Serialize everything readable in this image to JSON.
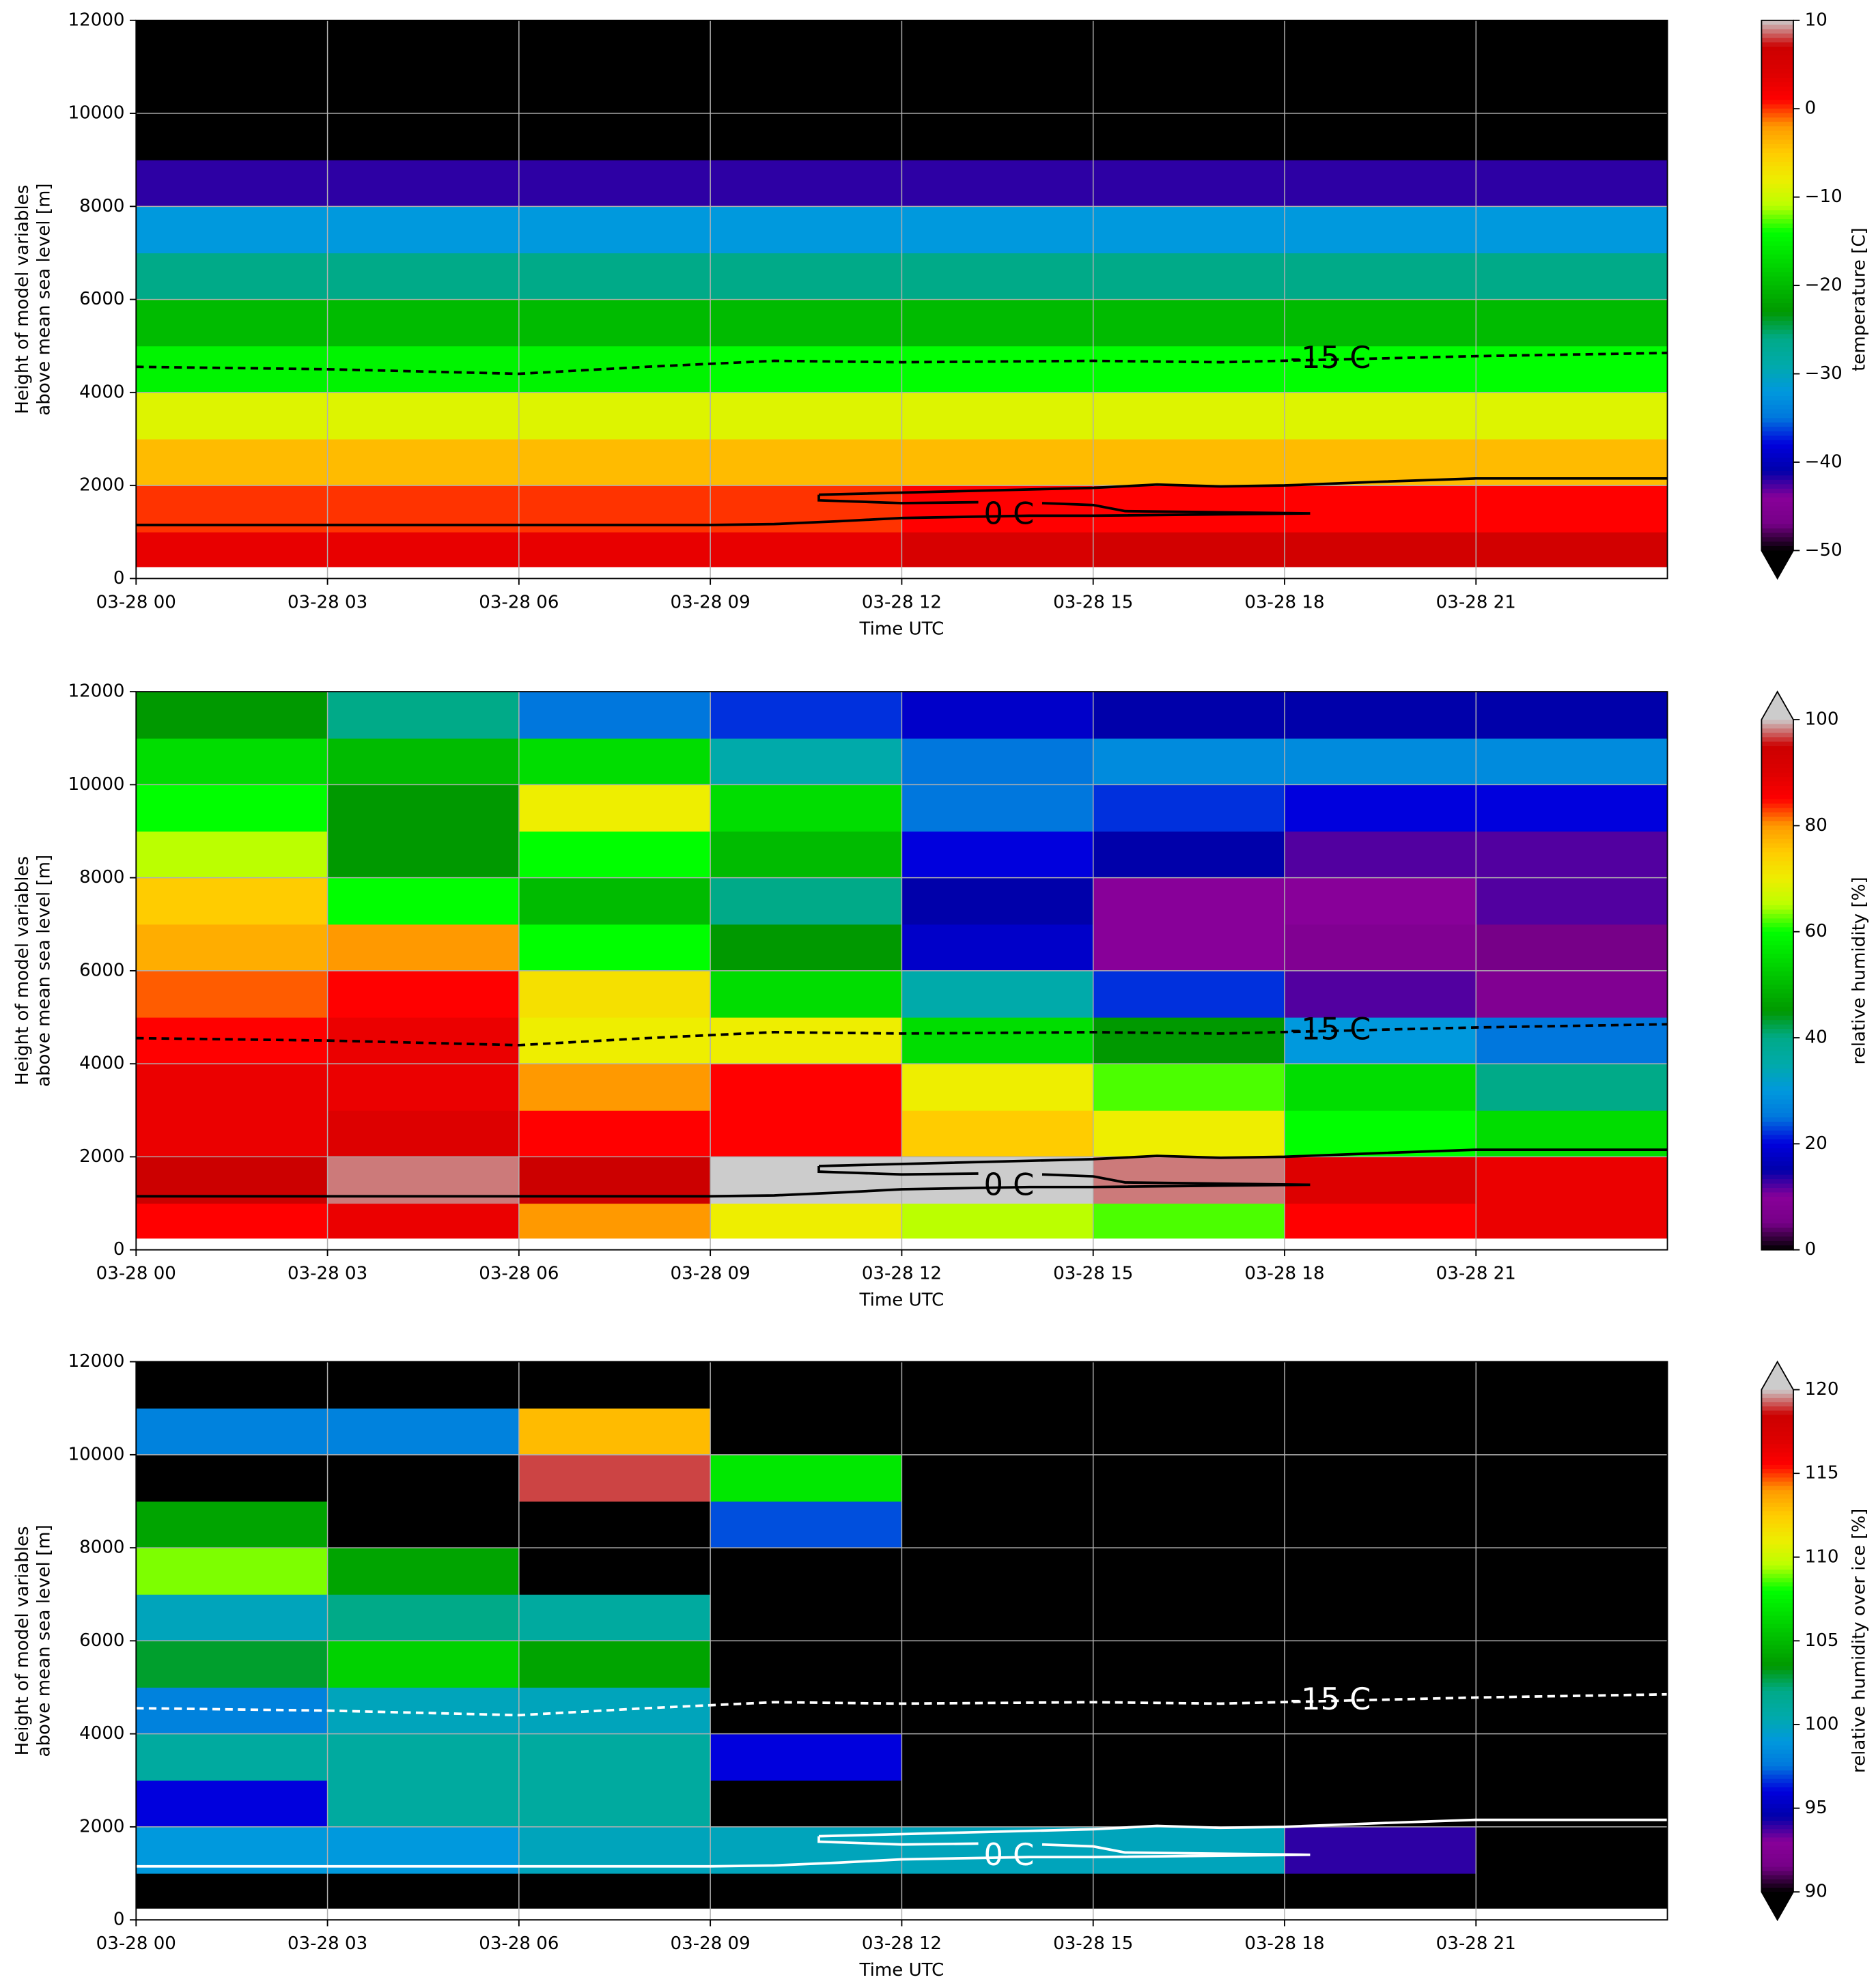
{
  "chart_data": [
    {
      "type": "heatmap",
      "xlabel": "Time UTC",
      "ylabel": [
        "Height of model variables",
        "above mean sea level [m]"
      ],
      "xlim": [
        0,
        24
      ],
      "ylim": [
        0,
        12000
      ],
      "xticks": [
        {
          "value": 0,
          "label": "03-28 00"
        },
        {
          "value": 3,
          "label": "03-28 03"
        },
        {
          "value": 6,
          "label": "03-28 06"
        },
        {
          "value": 9,
          "label": "03-28 09"
        },
        {
          "value": 12,
          "label": "03-28 12"
        },
        {
          "value": 15,
          "label": "03-28 15"
        },
        {
          "value": 18,
          "label": "03-28 18"
        },
        {
          "value": 21,
          "label": "03-28 21"
        }
      ],
      "yticks": [
        0,
        2000,
        4000,
        6000,
        8000,
        10000,
        12000
      ],
      "grid": true,
      "x_edges": [
        0,
        3,
        6,
        9,
        12,
        15,
        18,
        21,
        24
      ],
      "y_edges": [
        250,
        1000,
        2000,
        3000,
        4000,
        5000,
        6000,
        7000,
        8000,
        9000,
        10000,
        11000,
        12000
      ],
      "z": [
        [
          3,
          3,
          3,
          3,
          5,
          6,
          6,
          6
        ],
        [
          0,
          0,
          0,
          0,
          1,
          1,
          1,
          1
        ],
        [
          -4,
          -4,
          -4,
          -4,
          -4,
          -4,
          -4,
          -4
        ],
        [
          -9,
          -9,
          -9,
          -9,
          -9,
          -9,
          -9,
          -9
        ],
        [
          -15,
          -15,
          -15,
          -14,
          -14,
          -14,
          -14,
          -14
        ],
        [
          -20,
          -20,
          -20,
          -20,
          -20,
          -20,
          -20,
          -20
        ],
        [
          -26,
          -26,
          -26,
          -26,
          -26,
          -26,
          -26,
          -26
        ],
        [
          -32,
          -32,
          -32,
          -32,
          -32,
          -32,
          -32,
          -32
        ],
        [
          -42,
          -42,
          -42,
          -42,
          -42,
          -42,
          -42,
          -42
        ],
        [
          -52,
          -52,
          -52,
          -52,
          -52,
          -52,
          -52,
          -52
        ],
        [
          -58,
          -58,
          -58,
          -58,
          -58,
          -58,
          -58,
          -58
        ],
        [
          -62,
          -62,
          -62,
          -62,
          -62,
          -62,
          -62,
          -62
        ]
      ],
      "cmap": "nipy_spectral",
      "clim": [
        -50,
        10
      ],
      "extend": "min",
      "colorbar_label": "temperature [C]",
      "colorbar_ticks": [
        10,
        0,
        {
          "value": -10,
          "label": "−10"
        },
        {
          "value": -20,
          "label": "−20"
        },
        {
          "value": -30,
          "label": "−30"
        },
        {
          "value": -40,
          "label": "−40"
        },
        {
          "value": -50,
          "label": "−50"
        }
      ],
      "contour_color": "#000000",
      "contours": [
        {
          "label": "-15 C",
          "linestyle": "dashed",
          "x": [
            0,
            3,
            6,
            8,
            10,
            12,
            15,
            17,
            18.5,
            21,
            24
          ],
          "y": [
            4550,
            4500,
            4400,
            4550,
            4680,
            4650,
            4680,
            4650,
            4700,
            4780,
            4850
          ]
        },
        {
          "label": "0 C",
          "linestyle": "solid",
          "x": [
            10.7,
            15,
            16,
            17,
            18,
            19.5,
            21,
            24,
            null,
            10.7,
            10.7,
            12,
            13.2,
            null,
            14.2,
            15,
            15.5,
            18.4,
            null,
            0,
            3,
            6,
            9,
            10,
            11,
            12,
            14,
            15,
            18.4
          ],
          "y": [
            1800,
            1950,
            2020,
            1980,
            2000,
            2080,
            2150,
            2150,
            null,
            1800,
            1680,
            1620,
            1640,
            null,
            1620,
            1580,
            1450,
            1400,
            null,
            1150,
            1150,
            1150,
            1150,
            1170,
            1230,
            1300,
            1350,
            1350,
            1400
          ]
        }
      ]
    },
    {
      "type": "heatmap",
      "xlabel": "Time UTC",
      "ylabel": [
        "Height of model variables",
        "above mean sea level [m]"
      ],
      "xlim": [
        0,
        24
      ],
      "ylim": [
        0,
        12000
      ],
      "xticks": [
        {
          "value": 0,
          "label": "03-28 00"
        },
        {
          "value": 3,
          "label": "03-28 03"
        },
        {
          "value": 6,
          "label": "03-28 06"
        },
        {
          "value": 9,
          "label": "03-28 09"
        },
        {
          "value": 12,
          "label": "03-28 12"
        },
        {
          "value": 15,
          "label": "03-28 15"
        },
        {
          "value": 18,
          "label": "03-28 18"
        },
        {
          "value": 21,
          "label": "03-28 21"
        }
      ],
      "yticks": [
        0,
        2000,
        4000,
        6000,
        8000,
        10000,
        12000
      ],
      "grid": true,
      "x_edges": [
        0,
        3,
        6,
        9,
        12,
        15,
        18,
        21,
        24
      ],
      "y_edges": [
        250,
        1000,
        2000,
        3000,
        4000,
        5000,
        6000,
        7000,
        8000,
        9000,
        10000,
        11000,
        12000
      ],
      "z": [
        [
          85,
          88,
          80,
          70,
          65,
          62,
          85,
          88
        ],
        [
          95,
          98,
          95,
          100,
          100,
          98,
          90,
          88
        ],
        [
          88,
          90,
          85,
          85,
          75,
          70,
          60,
          55
        ],
        [
          88,
          88,
          80,
          85,
          70,
          62,
          55,
          40
        ],
        [
          85,
          88,
          70,
          70,
          55,
          45,
          30,
          25
        ],
        [
          82,
          85,
          72,
          55,
          35,
          22,
          12,
          8
        ],
        [
          78,
          80,
          60,
          45,
          18,
          10,
          8,
          5
        ],
        [
          75,
          60,
          50,
          40,
          15,
          10,
          10,
          12
        ],
        [
          65,
          45,
          60,
          50,
          20,
          15,
          12,
          12
        ],
        [
          60,
          45,
          70,
          55,
          25,
          22,
          20,
          20
        ],
        [
          55,
          50,
          55,
          35,
          25,
          28,
          28,
          28
        ],
        [
          45,
          40,
          25,
          22,
          18,
          15,
          15,
          15
        ]
      ],
      "cmap": "nipy_spectral",
      "clim": [
        0,
        100
      ],
      "extend": "max",
      "colorbar_label": "relative humidity [%]",
      "colorbar_ticks": [
        0,
        20,
        40,
        60,
        80,
        100
      ],
      "contour_color": "#000000",
      "contours": [
        {
          "label": "-15 C",
          "linestyle": "dashed",
          "x": [
            0,
            3,
            6,
            8,
            10,
            12,
            15,
            17,
            18.5,
            21,
            24
          ],
          "y": [
            4550,
            4500,
            4400,
            4550,
            4680,
            4650,
            4680,
            4650,
            4700,
            4780,
            4850
          ]
        },
        {
          "label": "0 C",
          "linestyle": "solid",
          "x": [
            10.7,
            15,
            16,
            17,
            18,
            19.5,
            21,
            24,
            null,
            10.7,
            10.7,
            12,
            13.2,
            null,
            14.2,
            15,
            15.5,
            18.4,
            null,
            0,
            3,
            6,
            9,
            10,
            11,
            12,
            14,
            15,
            18.4
          ],
          "y": [
            1800,
            1950,
            2020,
            1980,
            2000,
            2080,
            2150,
            2150,
            null,
            1800,
            1680,
            1620,
            1640,
            null,
            1620,
            1580,
            1450,
            1400,
            null,
            1150,
            1150,
            1150,
            1150,
            1170,
            1230,
            1300,
            1350,
            1350,
            1400
          ]
        }
      ]
    },
    {
      "type": "heatmap",
      "xlabel": "Time UTC",
      "ylabel": [
        "Height of model variables",
        "above mean sea level [m]"
      ],
      "xlim": [
        0,
        24
      ],
      "ylim": [
        0,
        12000
      ],
      "xticks": [
        {
          "value": 0,
          "label": "03-28 00"
        },
        {
          "value": 3,
          "label": "03-28 03"
        },
        {
          "value": 6,
          "label": "03-28 06"
        },
        {
          "value": 9,
          "label": "03-28 09"
        },
        {
          "value": 12,
          "label": "03-28 12"
        },
        {
          "value": 15,
          "label": "03-28 15"
        },
        {
          "value": 18,
          "label": "03-28 18"
        },
        {
          "value": 21,
          "label": "03-28 21"
        }
      ],
      "yticks": [
        0,
        2000,
        4000,
        6000,
        8000,
        10000,
        12000
      ],
      "grid": true,
      "x_edges": [
        0,
        3,
        6,
        9,
        12,
        15,
        18,
        21,
        24
      ],
      "y_edges": [
        250,
        1000,
        2000,
        3000,
        4000,
        5000,
        6000,
        7000,
        8000,
        9000,
        10000,
        11000,
        12000
      ],
      "z": [
        [
          80,
          80,
          80,
          80,
          80,
          80,
          80,
          80
        ],
        [
          99,
          99,
          100,
          100,
          100,
          100,
          94,
          80
        ],
        [
          96,
          101,
          101,
          80,
          80,
          80,
          80,
          80
        ],
        [
          101,
          101,
          101,
          96,
          80,
          80,
          80,
          80
        ],
        [
          98,
          100,
          100,
          80,
          80,
          80,
          80,
          80
        ],
        [
          103,
          106,
          104,
          80,
          80,
          80,
          80,
          80
        ],
        [
          100,
          102,
          101,
          80,
          80,
          80,
          80,
          80
        ],
        [
          109,
          104,
          80,
          80,
          80,
          80,
          80,
          80
        ],
        [
          104,
          80,
          80,
          97,
          80,
          80,
          80,
          80
        ],
        [
          80,
          80,
          119,
          107,
          80,
          80,
          80,
          80
        ],
        [
          98,
          98,
          113,
          80,
          80,
          80,
          80,
          80
        ],
        [
          80,
          80,
          80,
          80,
          80,
          80,
          80,
          80
        ]
      ],
      "cmap": "nipy_spectral",
      "clim": [
        90,
        120
      ],
      "extend": "both",
      "colorbar_label": "relative humidity over ice [%]",
      "colorbar_ticks": [
        90,
        95,
        100,
        105,
        110,
        115,
        120
      ],
      "contour_color": "#ffffff",
      "contours": [
        {
          "label": "-15 C",
          "linestyle": "dashed",
          "x": [
            0,
            3,
            6,
            8,
            10,
            12,
            15,
            17,
            18.5,
            21,
            24
          ],
          "y": [
            4550,
            4500,
            4400,
            4550,
            4680,
            4650,
            4680,
            4650,
            4700,
            4780,
            4850
          ]
        },
        {
          "label": "0 C",
          "linestyle": "solid",
          "x": [
            10.7,
            15,
            16,
            17,
            18,
            19.5,
            21,
            24,
            null,
            10.7,
            10.7,
            12,
            13.2,
            null,
            14.2,
            15,
            15.5,
            18.4,
            null,
            0,
            3,
            6,
            9,
            10,
            11,
            12,
            14,
            15,
            18.4
          ],
          "y": [
            1800,
            1950,
            2020,
            1980,
            2000,
            2080,
            2150,
            2150,
            null,
            1800,
            1680,
            1620,
            1640,
            null,
            1620,
            1580,
            1450,
            1400,
            null,
            1150,
            1150,
            1150,
            1150,
            1170,
            1230,
            1300,
            1350,
            1350,
            1400
          ]
        }
      ]
    }
  ]
}
